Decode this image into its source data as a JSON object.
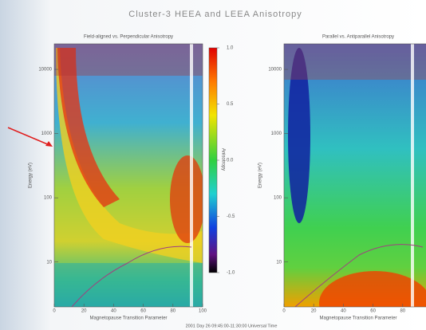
{
  "figure": {
    "title": "Cluster-3 HEEA and LEEA Anisotropy",
    "caption": "2001 Day 26 09:45:00-11:30:00 Universal Time"
  },
  "chart_data": [
    {
      "type": "heatmap",
      "title": "Field-aligned vs. Perpendicular Anisotropy",
      "xlabel": "Magnetopause Transition Parameter",
      "ylabel": "Energy (eV)",
      "xlim": [
        0,
        100
      ],
      "xticks": [
        0,
        20,
        40,
        60,
        80,
        100
      ],
      "ylim": [
        2,
        25000
      ],
      "ylog": true,
      "yticks": [
        10,
        100,
        1000,
        10000
      ],
      "colorbar": {
        "label": "Anisotropy",
        "lim": [
          -1,
          1
        ],
        "ticks": [
          {
            "value": 1,
            "label": "1.0"
          },
          0.5,
          {
            "value": 0,
            "label": "0.0"
          },
          -0.5,
          {
            "value": -1,
            "label": "-1.0"
          }
        ]
      }
    },
    {
      "type": "heatmap",
      "title": "Parallel vs. Antiparallel Anisotropy",
      "xlabel": "Magnetopause Transition Parameter",
      "ylabel": "Energy (eV)",
      "xlim": [
        0,
        100
      ],
      "xticks": [
        0,
        20,
        40,
        60,
        80
      ],
      "ylim": [
        2,
        25000
      ],
      "ylog": true,
      "yticks": [
        10,
        100,
        1000,
        10000
      ]
    }
  ]
}
